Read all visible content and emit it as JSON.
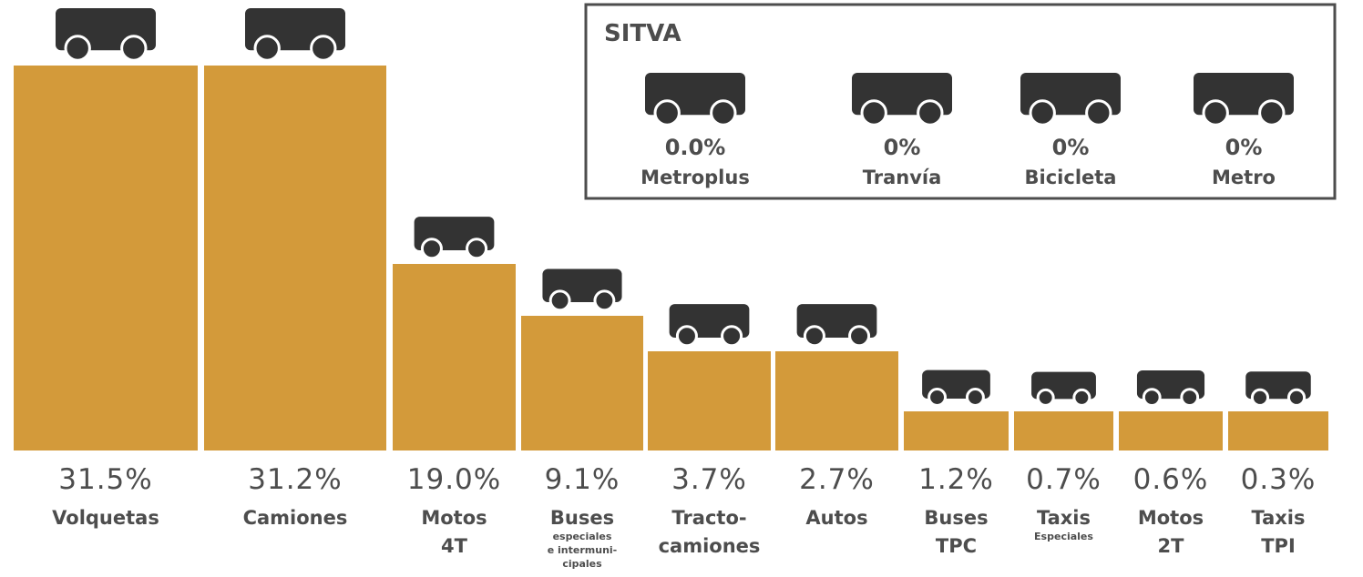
{
  "bars": [
    {
      "value": "31.5%",
      "label": [
        "Volquetas"
      ]
    },
    {
      "value": "31.2%",
      "label": [
        "Camiones"
      ]
    },
    {
      "value": "19.0%",
      "label": [
        "Motos",
        "4T"
      ]
    },
    {
      "value": "9.1%",
      "label": [
        "Buses"
      ],
      "note": [
        "especiales",
        "e intermuni-",
        "cipales"
      ]
    },
    {
      "value": "3.7%",
      "label": [
        "Tracto-",
        "camiones"
      ]
    },
    {
      "value": "2.7%",
      "label": [
        "Autos"
      ]
    },
    {
      "value": "1.2%",
      "label": [
        "Buses",
        "TPC"
      ]
    },
    {
      "value": "0.7%",
      "label": [
        "Taxis"
      ],
      "note": [
        "Especiales"
      ]
    },
    {
      "value": "0.6%",
      "label": [
        "Motos",
        "2T"
      ]
    },
    {
      "value": "0.3%",
      "label": [
        "Taxis",
        "TPI"
      ]
    }
  ],
  "sitva": {
    "title": "SITVA",
    "items": [
      {
        "value": "0.0%",
        "label": "Metroplus"
      },
      {
        "value": "0%",
        "label": "Tranvía"
      },
      {
        "value": "0%",
        "label": "Bicicleta"
      },
      {
        "value": "0%",
        "label": "Metro"
      }
    ]
  }
}
